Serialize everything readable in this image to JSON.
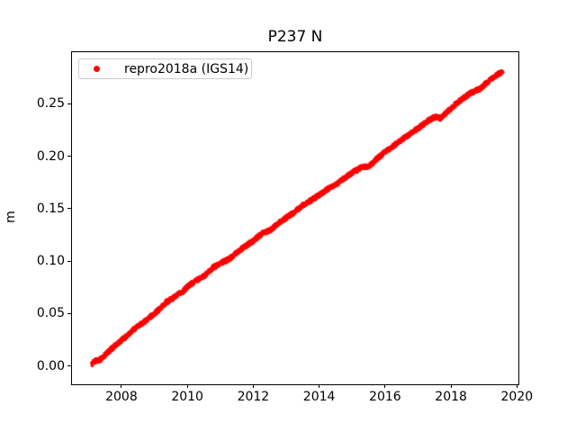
{
  "figure": {
    "title": "P237 N",
    "ylabel": "m"
  },
  "legend": {
    "label": "repro2018a (IGS14)",
    "marker_color": "#ff0000"
  },
  "chart_data": {
    "type": "scatter",
    "title": "P237 N",
    "xlabel": "",
    "ylabel": "m",
    "grid": false,
    "legend_position": "upper left",
    "marker": "dot",
    "marker_color": "#ff0000",
    "axis_color": "#000000",
    "legend_border_color": "#cccccc",
    "xlim": [
      2006.5,
      2020.045
    ],
    "ylim": [
      -0.0176,
      0.2992
    ],
    "x_ticks": [
      2008,
      2010,
      2012,
      2014,
      2016,
      2018,
      2020
    ],
    "x_tick_labels": [
      "2008",
      "2010",
      "2012",
      "2014",
      "2016",
      "2018",
      "2020"
    ],
    "y_ticks": [
      0.0,
      0.05,
      0.1,
      0.15,
      0.2,
      0.25
    ],
    "y_tick_labels": [
      "0.00",
      "0.05",
      "0.10",
      "0.15",
      "0.20",
      "0.25"
    ],
    "series": [
      {
        "name": "repro2018a (IGS14)",
        "color": "#ff0000",
        "approx_trend_m_per_yr": 0.0223,
        "scatter_band_m": 0.004,
        "points_per_year_rendered": 140,
        "points_sampled": [
          [
            2007.08,
            0.0025
          ],
          [
            2007.2,
            0.0058
          ],
          [
            2007.33,
            0.0069
          ],
          [
            2007.58,
            0.0143
          ],
          [
            2007.83,
            0.0216
          ],
          [
            2008.08,
            0.028
          ],
          [
            2008.33,
            0.0354
          ],
          [
            2008.58,
            0.0408
          ],
          [
            2008.83,
            0.0471
          ],
          [
            2009.08,
            0.0535
          ],
          [
            2009.33,
            0.0614
          ],
          [
            2009.58,
            0.0663
          ],
          [
            2009.83,
            0.0716
          ],
          [
            2010.0,
            0.077
          ],
          [
            2010.25,
            0.0825
          ],
          [
            2010.5,
            0.087
          ],
          [
            2010.75,
            0.0944
          ],
          [
            2011.0,
            0.0989
          ],
          [
            2011.25,
            0.103
          ],
          [
            2011.5,
            0.1099
          ],
          [
            2011.75,
            0.1153
          ],
          [
            2012.0,
            0.1208
          ],
          [
            2012.25,
            0.1273
          ],
          [
            2012.5,
            0.1303
          ],
          [
            2012.75,
            0.1372
          ],
          [
            2013.0,
            0.1427
          ],
          [
            2013.25,
            0.1482
          ],
          [
            2013.5,
            0.1547
          ],
          [
            2013.75,
            0.1591
          ],
          [
            2014.0,
            0.1645
          ],
          [
            2014.25,
            0.1698
          ],
          [
            2014.5,
            0.1741
          ],
          [
            2014.75,
            0.1803
          ],
          [
            2015.0,
            0.1856
          ],
          [
            2015.25,
            0.19
          ],
          [
            2015.5,
            0.1915
          ],
          [
            2015.75,
            0.199
          ],
          [
            2016.0,
            0.2055
          ],
          [
            2016.25,
            0.211
          ],
          [
            2016.5,
            0.2172
          ],
          [
            2016.75,
            0.2225
          ],
          [
            2017.0,
            0.2278
          ],
          [
            2017.25,
            0.2341
          ],
          [
            2017.5,
            0.2383
          ],
          [
            2017.65,
            0.237
          ],
          [
            2017.85,
            0.243
          ],
          [
            2018.1,
            0.25
          ],
          [
            2018.35,
            0.2563
          ],
          [
            2018.6,
            0.2615
          ],
          [
            2018.85,
            0.2653
          ],
          [
            2019.1,
            0.2721
          ],
          [
            2019.3,
            0.2773
          ],
          [
            2019.45,
            0.28
          ],
          [
            2019.52,
            0.281
          ]
        ]
      }
    ]
  }
}
